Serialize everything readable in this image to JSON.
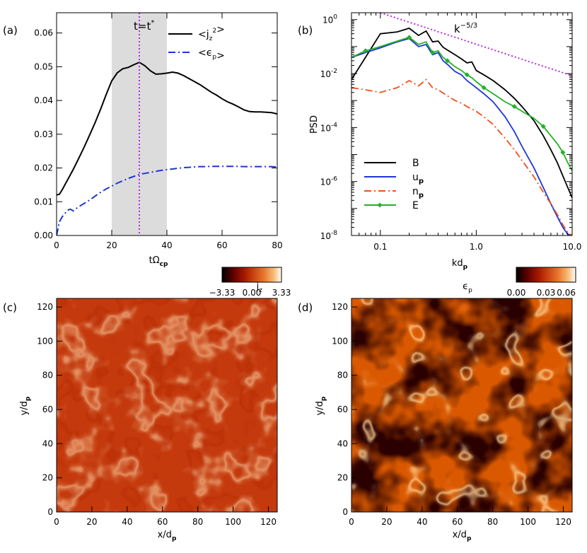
{
  "panels": {
    "a": {
      "letter": "(a)",
      "xlabel": "tΩ",
      "xlabel_sub": "cp",
      "marker": "t=t",
      "marker_sup": "*"
    },
    "b": {
      "letter": "(b)",
      "xlabel": "kd",
      "xlabel_sub": "p",
      "ylabel": "PSD",
      "slope": "k",
      "slope_sup": "−5/3"
    },
    "c": {
      "letter": "(c)",
      "title": "j",
      "title_sub": "z",
      "cbar_ticks": [
        "−3.33",
        "0.00",
        "3.33"
      ],
      "xlabel": "x/d",
      "ylabel": "y/d",
      "label_sub": "p"
    },
    "d": {
      "letter": "(d)",
      "title": "ϵ",
      "title_sub": "p",
      "cbar_ticks": [
        "0.00",
        "0.03",
        "0.06"
      ],
      "xlabel": "x/d",
      "ylabel": "y/d",
      "label_sub": "p"
    }
  },
  "chart_data": [
    {
      "type": "line",
      "panel": "a",
      "xlim": [
        0,
        80
      ],
      "ylim": [
        0,
        0.066
      ],
      "xticks": [
        "0",
        "20",
        "40",
        "60",
        "80"
      ],
      "yticks": [
        "0.00",
        "0.01",
        "0.02",
        "0.03",
        "0.04",
        "0.05",
        "0.06"
      ],
      "shaded_interval": [
        20,
        40
      ],
      "vertical_marker_x": 30,
      "series": [
        {
          "name": "<j",
          "name_sub": "z",
          "name_sup": "2",
          "name_end": ">",
          "color": "#000000",
          "dash": "solid",
          "x": [
            0,
            1,
            2,
            4,
            6,
            8,
            10,
            12,
            14,
            16,
            18,
            20,
            22,
            24,
            26,
            28,
            30,
            32,
            34,
            36,
            38,
            40,
            42,
            44,
            46,
            48,
            50,
            52,
            54,
            56,
            58,
            60,
            62,
            64,
            66,
            68,
            70,
            72,
            74,
            76,
            78,
            80
          ],
          "y": [
            0.012,
            0.0122,
            0.0135,
            0.0165,
            0.0195,
            0.0228,
            0.0262,
            0.0298,
            0.0335,
            0.0375,
            0.0418,
            0.0458,
            0.0482,
            0.0494,
            0.0498,
            0.0506,
            0.0513,
            0.0503,
            0.0488,
            0.0478,
            0.0479,
            0.0481,
            0.0484,
            0.0481,
            0.0474,
            0.0465,
            0.0456,
            0.0447,
            0.0436,
            0.0425,
            0.0416,
            0.0405,
            0.0396,
            0.0389,
            0.0381,
            0.0372,
            0.0367,
            0.0366,
            0.0366,
            0.0365,
            0.0364,
            0.036
          ]
        },
        {
          "name": "<ϵ",
          "name_sub": "p",
          "name_end": ">",
          "color": "#1f35d6",
          "dash": "dashdot",
          "x": [
            0,
            0.5,
            1,
            2,
            3,
            4,
            5,
            6,
            8,
            10,
            12,
            14,
            16,
            18,
            20,
            22,
            24,
            26,
            28,
            30,
            32,
            34,
            36,
            38,
            40,
            42,
            44,
            46,
            48,
            50,
            52,
            54,
            56,
            58,
            60,
            62,
            64,
            66,
            68,
            70,
            72,
            74,
            76,
            78,
            80
          ],
          "y": [
            0,
            0.002,
            0.004,
            0.0055,
            0.0065,
            0.0075,
            0.0078,
            0.0073,
            0.0085,
            0.0095,
            0.0105,
            0.0117,
            0.0128,
            0.0138,
            0.0146,
            0.0155,
            0.0162,
            0.0169,
            0.0175,
            0.0181,
            0.0184,
            0.0187,
            0.019,
            0.0193,
            0.0195,
            0.0197,
            0.0199,
            0.0201,
            0.0202,
            0.0203,
            0.0204,
            0.0204,
            0.0205,
            0.0205,
            0.0205,
            0.0205,
            0.0205,
            0.0205,
            0.0204,
            0.0204,
            0.0204,
            0.0204,
            0.0204,
            0.0204,
            0.0203
          ]
        }
      ]
    },
    {
      "type": "line",
      "panel": "b",
      "xscale": "log",
      "yscale": "log",
      "xlim": [
        0.05,
        10
      ],
      "ylim": [
        1e-08,
        1.8
      ],
      "xticks": [
        {
          "v": 0.1,
          "label": "0.1"
        },
        {
          "v": 1,
          "label": "1.0"
        },
        {
          "v": 10,
          "label": "10.0"
        }
      ],
      "yticks": [
        {
          "v": 1,
          "base": "10",
          "exp": "0"
        },
        {
          "v": 0.01,
          "base": "10",
          "exp": "-2"
        },
        {
          "v": 0.0001,
          "base": "10",
          "exp": "-4"
        },
        {
          "v": 1e-06,
          "base": "10",
          "exp": "-6"
        },
        {
          "v": 1e-08,
          "base": "10",
          "exp": "-8"
        }
      ],
      "legend_position": "lower-left",
      "series": [
        {
          "name": "B",
          "color": "#000000",
          "dash": "solid",
          "x": [
            0.05,
            0.07,
            0.1,
            0.15,
            0.2,
            0.25,
            0.3,
            0.35,
            0.4,
            0.45,
            0.5,
            0.6,
            0.7,
            0.8,
            0.9,
            1.0,
            1.2,
            1.5,
            2,
            2.5,
            3,
            4,
            5,
            6,
            7,
            8,
            9,
            10
          ],
          "y": [
            0.006,
            0.04,
            0.3,
            0.35,
            0.48,
            0.26,
            0.38,
            0.15,
            0.16,
            0.095,
            0.075,
            0.05,
            0.035,
            0.025,
            0.027,
            0.013,
            0.009,
            0.0055,
            0.0025,
            0.0012,
            0.0006,
            0.00018,
            5e-05,
            1.5e-05,
            5e-06,
            1.6e-06,
            6e-07,
            2.5e-07
          ]
        },
        {
          "name": "u",
          "name_sub": "p",
          "color": "#1f35d6",
          "dash": "solid",
          "x": [
            0.05,
            0.07,
            0.1,
            0.15,
            0.2,
            0.25,
            0.3,
            0.35,
            0.4,
            0.45,
            0.5,
            0.6,
            0.7,
            0.8,
            0.9,
            1.0,
            1.2,
            1.5,
            2,
            2.5,
            3,
            4,
            5,
            6,
            7,
            8,
            9,
            10
          ],
          "y": [
            0.04,
            0.06,
            0.09,
            0.15,
            0.2,
            0.1,
            0.12,
            0.05,
            0.06,
            0.03,
            0.022,
            0.012,
            0.009,
            0.0055,
            0.004,
            0.003,
            0.0018,
            0.0009,
            0.00025,
            7e-05,
            2e-05,
            3.2e-06,
            6e-07,
            1.5e-07,
            5e-08,
            2e-08,
            1.1e-08,
            1e-08
          ]
        },
        {
          "name": "n",
          "name_sub": "p",
          "color": "#f0501e",
          "dash": "dashdot",
          "x": [
            0.05,
            0.07,
            0.1,
            0.15,
            0.2,
            0.25,
            0.3,
            0.35,
            0.4,
            0.5,
            0.6,
            0.7,
            0.8,
            1.0,
            1.2,
            1.5,
            2,
            2.5,
            3,
            4,
            5,
            6,
            7,
            8,
            9,
            10
          ],
          "y": [
            0.003,
            0.0025,
            0.002,
            0.003,
            0.0055,
            0.0035,
            0.006,
            0.003,
            0.0025,
            0.0015,
            0.001,
            0.0008,
            0.0006,
            0.0004,
            0.00025,
            0.00013,
            4e-05,
            1.5e-05,
            6e-06,
            1.5e-06,
            4e-07,
            1.5e-07,
            6e-08,
            2.5e-08,
            1.3e-08,
            1e-08
          ]
        },
        {
          "name": "E",
          "color": "#23b223",
          "dash": "solid",
          "markers": true,
          "x": [
            0.05,
            0.07,
            0.1,
            0.15,
            0.2,
            0.25,
            0.3,
            0.35,
            0.4,
            0.45,
            0.5,
            0.6,
            0.7,
            0.8,
            0.9,
            1.0,
            1.2,
            1.5,
            2,
            2.5,
            3,
            4,
            5,
            6,
            7,
            8,
            9,
            10
          ],
          "y": [
            0.04,
            0.07,
            0.1,
            0.16,
            0.22,
            0.12,
            0.15,
            0.06,
            0.07,
            0.04,
            0.03,
            0.018,
            0.013,
            0.009,
            0.007,
            0.005,
            0.003,
            0.0018,
            0.0009,
            0.0006,
            0.0004,
            0.00022,
            0.00011,
            5e-05,
            2.5e-05,
            1.2e-05,
            5e-06,
            2.5e-06
          ]
        },
        {
          "name": "",
          "color": "#b52ee0",
          "dash": "dotted",
          "ref_line": true,
          "x": [
            0.1,
            10
          ],
          "y": [
            1.8,
            0.0083
          ]
        }
      ]
    },
    {
      "type": "heatmap",
      "panel": "c",
      "xlim": [
        0,
        125
      ],
      "ylim": [
        0,
        125
      ],
      "xticks": [
        "0",
        "20",
        "40",
        "60",
        "80",
        "100",
        "120"
      ],
      "yticks": [
        "0",
        "20",
        "40",
        "60",
        "80",
        "100",
        "120"
      ],
      "color_range": [
        -3.33,
        3.33
      ],
      "colormap": [
        "#000000",
        "#5a0000",
        "#a81800",
        "#c43a0d",
        "#e8752a",
        "#f7bb78",
        "#ffffff"
      ]
    },
    {
      "type": "heatmap",
      "panel": "d",
      "xlim": [
        0,
        125
      ],
      "ylim": [
        0,
        125
      ],
      "xticks": [
        "0",
        "20",
        "40",
        "60",
        "80",
        "100",
        "120"
      ],
      "yticks": [
        "0",
        "20",
        "40",
        "60",
        "80",
        "100",
        "120"
      ],
      "color_range": [
        0,
        0.06
      ],
      "colormap": [
        "#000000",
        "#5a0000",
        "#a81800",
        "#c43a0d",
        "#e8752a",
        "#f7bb78",
        "#ffffff"
      ]
    }
  ]
}
